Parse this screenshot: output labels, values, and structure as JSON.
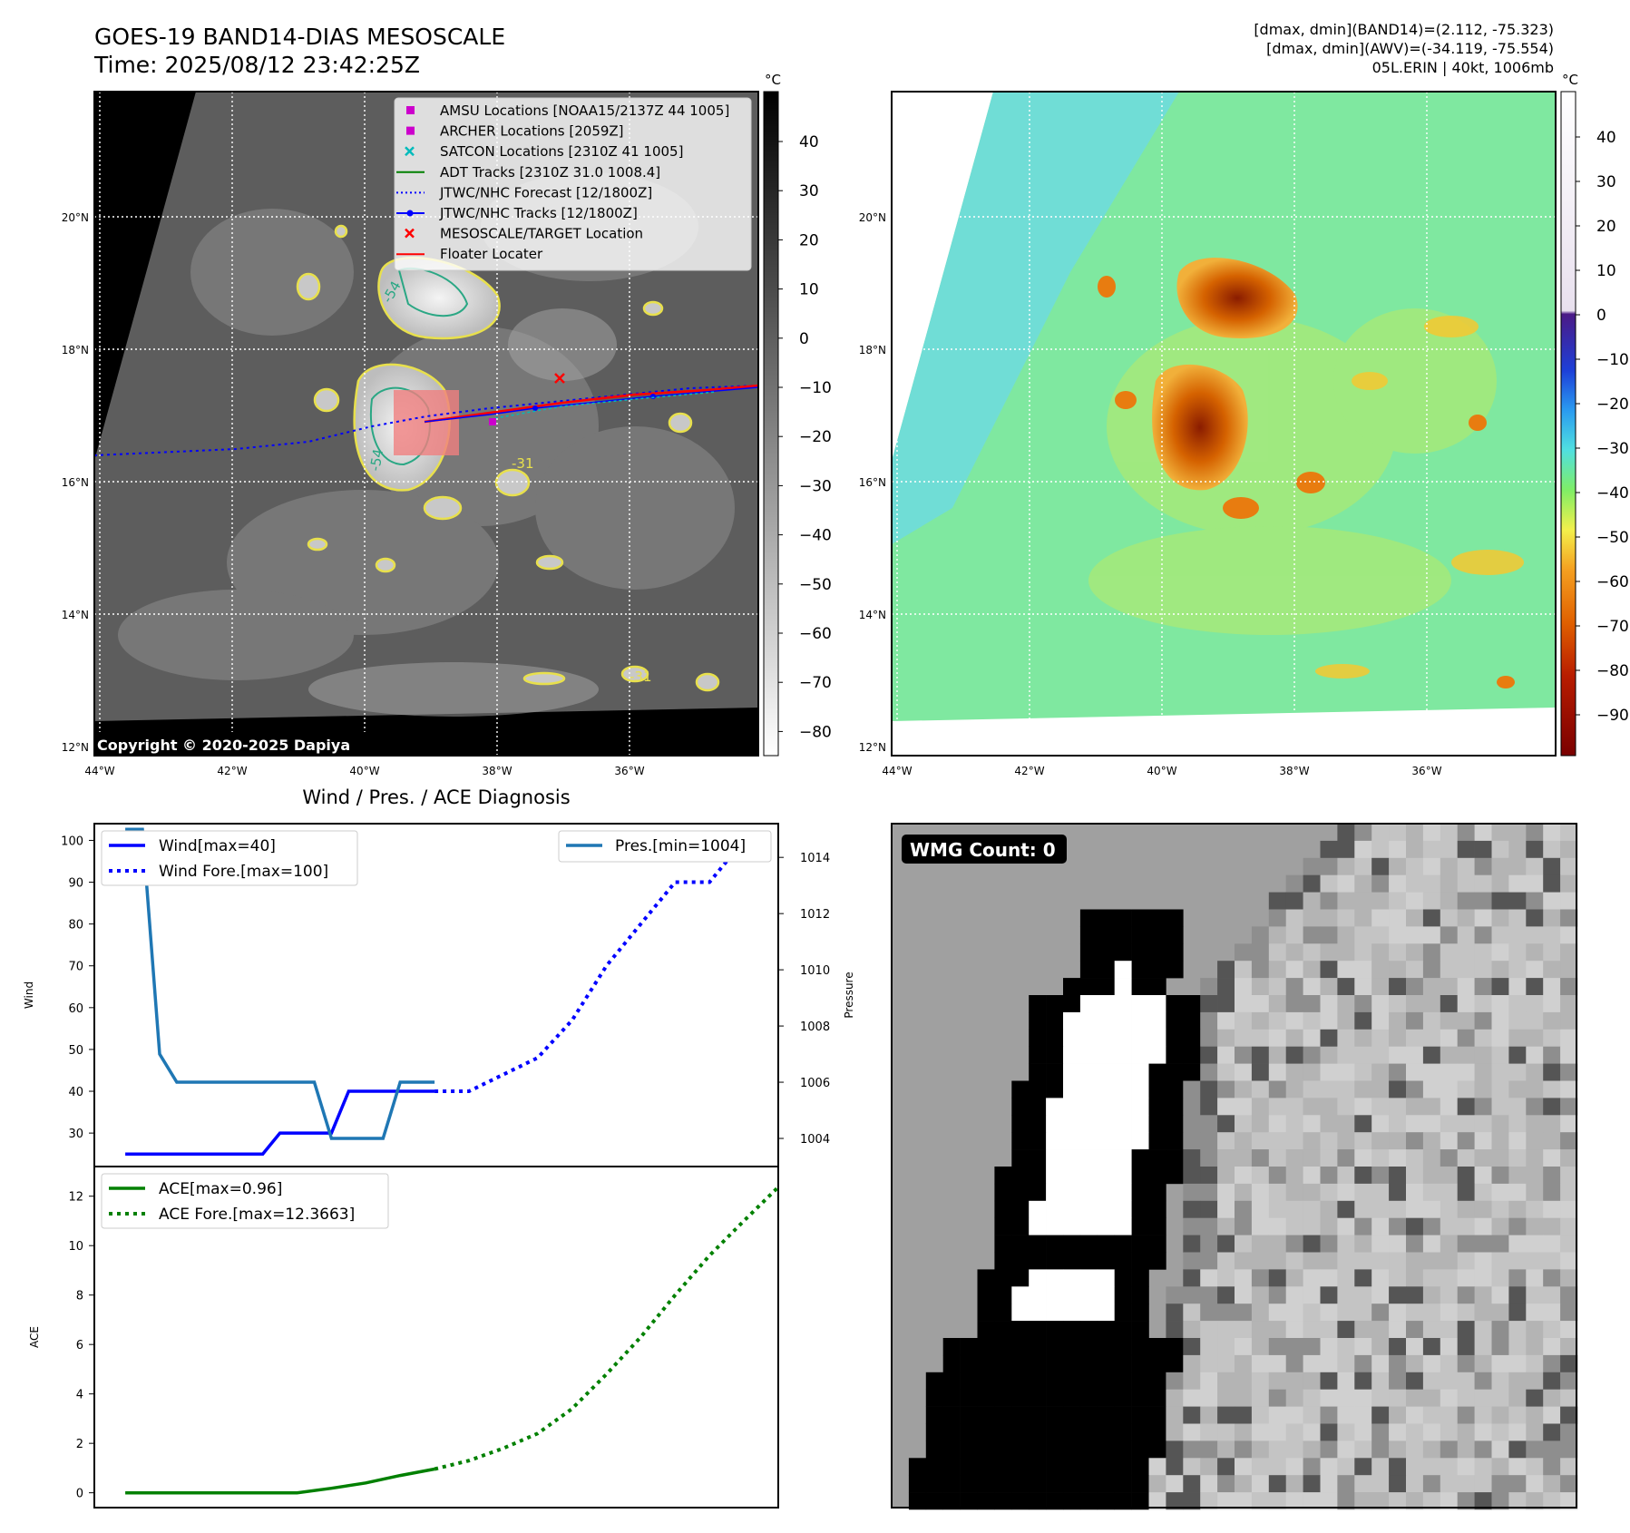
{
  "header": {
    "title_line1": "GOES-19 BAND14-DIAS MESOSCALE",
    "title_line2": "Time: 2025/08/12 23:42:25Z",
    "stats_line1": "[dmax, dmin](BAND14)=(2.112, -75.323)",
    "stats_line2": "[dmax, dmin](AWV)=(-34.119, -75.554)",
    "stats_line3": "05L.ERIN | 40kt, 1006mb"
  },
  "map_axes": {
    "lat_labels": [
      "20°N",
      "18°N",
      "16°N",
      "14°N",
      "12°N"
    ],
    "lon_labels": [
      "44°W",
      "42°W",
      "40°W",
      "38°W",
      "36°W"
    ]
  },
  "ir_map": {
    "legend": [
      {
        "label": "AMSU Locations [NOAA15/2137Z 44 1005]",
        "marker": "square",
        "color": "#cc00cc"
      },
      {
        "label": "ARCHER Locations [2059Z]",
        "marker": "square",
        "color": "#cc00cc"
      },
      {
        "label": "SATCON Locations [2310Z 41 1005]",
        "marker": "x",
        "color": "#00bbbb"
      },
      {
        "label": "ADT Tracks [2310Z 31.0 1008.4]",
        "marker": "line",
        "color": "#008000"
      },
      {
        "label": "JTWC/NHC Forecast [12/1800Z]",
        "marker": "dotted",
        "color": "#0000ff"
      },
      {
        "label": "JTWC/NHC Tracks [12/1800Z]",
        "marker": "line-dot",
        "color": "#0000ff"
      },
      {
        "label": "MESOSCALE/TARGET Location",
        "marker": "x",
        "color": "#ff0000"
      },
      {
        "label": "Floater Locater",
        "marker": "line",
        "color": "#ff0000"
      }
    ],
    "copyright": "Copyright © 2020-2025 Dapiya",
    "contour_labels": [
      "-54",
      "-54",
      "-31",
      "-31"
    ],
    "colorbar": {
      "unit": "°C",
      "ticks": [
        "40",
        "30",
        "20",
        "10",
        "0",
        "−10",
        "−20",
        "−30",
        "−40",
        "−50",
        "−60",
        "−70",
        "−80"
      ]
    }
  },
  "wv_map": {
    "colorbar": {
      "unit": "°C",
      "ticks": [
        "40",
        "30",
        "20",
        "10",
        "0",
        "−10",
        "−20",
        "−30",
        "−40",
        "−50",
        "−60",
        "−70",
        "−80",
        "−90"
      ]
    }
  },
  "diag_title": "Wind / Pres. / ACE Diagnosis",
  "wmg_label": "WMG Count: 0",
  "chart_data": [
    {
      "type": "line",
      "title": "Wind / Pres. / ACE Diagnosis",
      "ylabel": "Wind",
      "ylabel_right": "Pressure",
      "ylim": [
        22,
        104
      ],
      "ylim_right": [
        1003,
        1015.2
      ],
      "y_ticks": [
        "100",
        "90",
        "80",
        "70",
        "60",
        "50",
        "40",
        "30"
      ],
      "y_ticks_right": [
        "1014",
        "1012",
        "1010",
        "1008",
        "1006",
        "1004"
      ],
      "series": [
        {
          "name": "Wind[max=40]",
          "color": "#0000ff",
          "style": "solid",
          "x": [
            0,
            1,
            2,
            3,
            4,
            5,
            6,
            7,
            8,
            9,
            10,
            11,
            12,
            13,
            14,
            15,
            16,
            17,
            18
          ],
          "values": [
            25,
            25,
            25,
            25,
            25,
            25,
            25,
            25,
            25,
            30,
            30,
            30,
            30,
            40,
            40,
            40,
            40,
            40,
            40
          ]
        },
        {
          "name": "Wind Fore.[max=100]",
          "color": "#0000ff",
          "style": "dotted",
          "x": [
            18,
            20,
            22,
            24,
            26,
            28,
            30,
            32,
            34,
            36
          ],
          "values": [
            40,
            40,
            44,
            48,
            57,
            70,
            80,
            90,
            90,
            100
          ]
        },
        {
          "name": "Pres.[min=1004]",
          "color": "#1f77b4",
          "style": "solid",
          "axis": "right",
          "x": [
            0,
            1,
            2,
            3,
            4,
            5,
            6,
            7,
            8,
            9,
            10,
            11,
            12,
            13,
            14,
            15,
            16,
            17,
            18
          ],
          "values": [
            1015,
            1015,
            1007,
            1006,
            1006,
            1006,
            1006,
            1006,
            1006,
            1006,
            1006,
            1006,
            1004,
            1004,
            1004,
            1004,
            1006,
            1006,
            1006
          ]
        }
      ],
      "xlim": [
        -1.8,
        38
      ]
    },
    {
      "type": "line",
      "ylabel": "ACE",
      "ylim": [
        -0.6,
        13.2
      ],
      "y_ticks": [
        "12",
        "10",
        "8",
        "6",
        "4",
        "2",
        "0"
      ],
      "series": [
        {
          "name": "ACE[max=0.96]",
          "color": "#008000",
          "style": "solid",
          "x": [
            0,
            2,
            4,
            6,
            8,
            10,
            12,
            14,
            16,
            18
          ],
          "values": [
            0,
            0,
            0,
            0,
            0,
            0,
            0.18,
            0.4,
            0.7,
            0.96
          ]
        },
        {
          "name": "ACE Fore.[max=12.3663]",
          "color": "#008000",
          "style": "dotted",
          "x": [
            18,
            20,
            22,
            24,
            26,
            28,
            30,
            32,
            34,
            36,
            38
          ],
          "values": [
            0.96,
            1.3,
            1.8,
            2.4,
            3.4,
            4.8,
            6.3,
            8.0,
            9.6,
            11.0,
            12.3663
          ]
        }
      ],
      "xlim": [
        -1.8,
        38
      ]
    }
  ]
}
